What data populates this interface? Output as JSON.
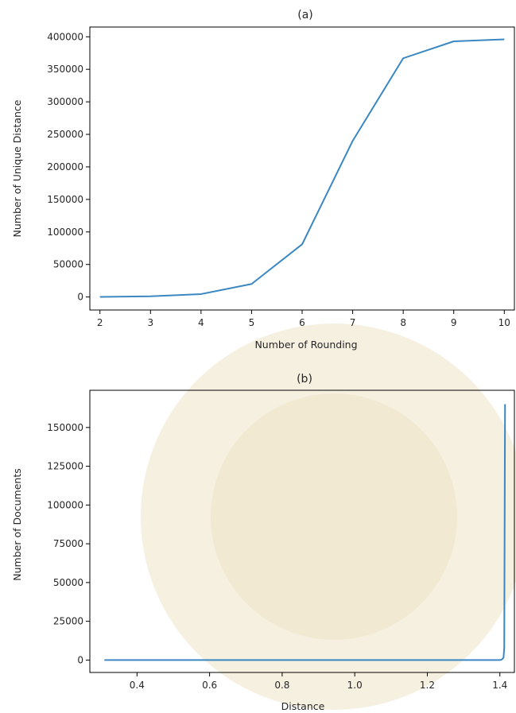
{
  "chart_data": [
    {
      "type": "line",
      "title": "(a)",
      "xlabel": "Number of Rounding",
      "ylabel": "Number of Unique Distance",
      "xlim": [
        1.8,
        10.2
      ],
      "ylim": [
        -20000,
        415000
      ],
      "xticks": [
        2,
        3,
        4,
        5,
        6,
        7,
        8,
        9,
        10
      ],
      "yticks": [
        0,
        50000,
        100000,
        150000,
        200000,
        250000,
        300000,
        350000,
        400000
      ],
      "grid": false,
      "color": "#3a87c2",
      "series": [
        {
          "x": [
            2,
            3,
            4,
            5,
            6,
            7,
            8,
            9,
            10
          ],
          "y": [
            200,
            1000,
            4500,
            20000,
            81000,
            240000,
            367000,
            393000,
            396000
          ]
        }
      ]
    },
    {
      "type": "line",
      "title": "(b)",
      "xlabel": "Distance",
      "ylabel": "Number of Documents",
      "xlim": [
        0.27,
        1.44
      ],
      "ylim": [
        -8000,
        174000
      ],
      "xticks": [
        0.4,
        0.6,
        0.8,
        1.0,
        1.2,
        1.4
      ],
      "xtick_labels": [
        "0.4",
        "0.6",
        "0.8",
        "1.0",
        "1.2",
        "1.4"
      ],
      "yticks": [
        0,
        25000,
        50000,
        75000,
        100000,
        125000,
        150000
      ],
      "grid": false,
      "color": "#3a87c2",
      "series": [
        {
          "x": [
            0.31,
            1.38,
            1.4,
            1.405,
            1.41,
            1.412,
            1.4142
          ],
          "y": [
            0,
            0,
            0,
            300,
            1500,
            8000,
            165000
          ]
        }
      ]
    }
  ]
}
